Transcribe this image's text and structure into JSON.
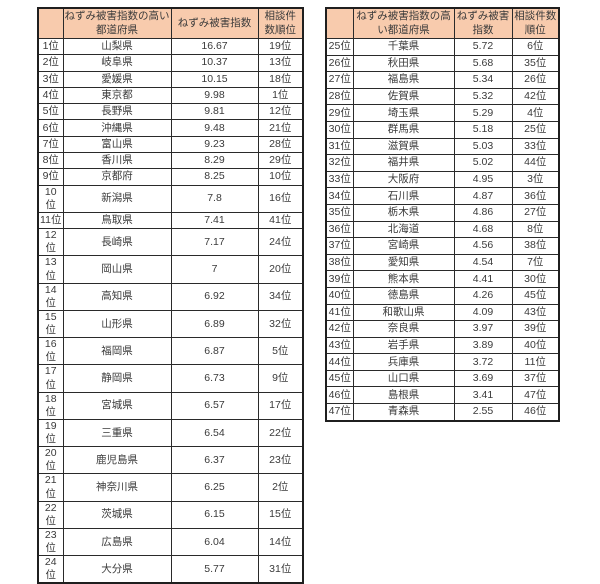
{
  "page": {
    "background": "#ffffff"
  },
  "colors": {
    "header_bg": "#f8cbad",
    "border": "#262626",
    "text": "#3a3a3a"
  },
  "chart_data": [
    {
      "type": "table",
      "headers": [
        "",
        "ねずみ被害指数の高い都道府県",
        "ねずみ被害指数",
        "相談件数順位"
      ],
      "rows": [
        [
          "1位",
          "山梨県",
          "16.67",
          "19位"
        ],
        [
          "2位",
          "岐阜県",
          "10.37",
          "13位"
        ],
        [
          "3位",
          "愛媛県",
          "10.15",
          "18位"
        ],
        [
          "4位",
          "東京都",
          "9.98",
          "1位"
        ],
        [
          "5位",
          "長野県",
          "9.81",
          "12位"
        ],
        [
          "6位",
          "沖縄県",
          "9.48",
          "21位"
        ],
        [
          "7位",
          "富山県",
          "9.23",
          "28位"
        ],
        [
          "8位",
          "香川県",
          "8.29",
          "29位"
        ],
        [
          "9位",
          "京都府",
          "8.25",
          "10位"
        ],
        [
          "10位",
          "新潟県",
          "7.8",
          "16位"
        ],
        [
          "11位",
          "鳥取県",
          "7.41",
          "41位"
        ],
        [
          "12位",
          "長崎県",
          "7.17",
          "24位"
        ],
        [
          "13位",
          "岡山県",
          "7",
          "20位"
        ],
        [
          "14位",
          "高知県",
          "6.92",
          "34位"
        ],
        [
          "15位",
          "山形県",
          "6.89",
          "32位"
        ],
        [
          "16位",
          "福岡県",
          "6.87",
          "5位"
        ],
        [
          "17位",
          "静岡県",
          "6.73",
          "9位"
        ],
        [
          "18位",
          "宮城県",
          "6.57",
          "17位"
        ],
        [
          "19位",
          "三重県",
          "6.54",
          "22位"
        ],
        [
          "20位",
          "鹿児島県",
          "6.37",
          "23位"
        ],
        [
          "21位",
          "神奈川県",
          "6.25",
          "2位"
        ],
        [
          "22位",
          "茨城県",
          "6.15",
          "15位"
        ],
        [
          "23位",
          "広島県",
          "6.04",
          "14位"
        ],
        [
          "24位",
          "大分県",
          "5.77",
          "31位"
        ]
      ]
    },
    {
      "type": "table",
      "headers": [
        "",
        "ねずみ被害指数の高い都道府県",
        "ねずみ被害指数",
        "相談件数順位"
      ],
      "rows": [
        [
          "25位",
          "千葉県",
          "5.72",
          "6位"
        ],
        [
          "26位",
          "秋田県",
          "5.68",
          "35位"
        ],
        [
          "27位",
          "福島県",
          "5.34",
          "26位"
        ],
        [
          "28位",
          "佐賀県",
          "5.32",
          "42位"
        ],
        [
          "29位",
          "埼玉県",
          "5.29",
          "4位"
        ],
        [
          "30位",
          "群馬県",
          "5.18",
          "25位"
        ],
        [
          "31位",
          "滋賀県",
          "5.03",
          "33位"
        ],
        [
          "32位",
          "福井県",
          "5.02",
          "44位"
        ],
        [
          "33位",
          "大阪府",
          "4.95",
          "3位"
        ],
        [
          "34位",
          "石川県",
          "4.87",
          "36位"
        ],
        [
          "35位",
          "栃木県",
          "4.86",
          "27位"
        ],
        [
          "36位",
          "北海道",
          "4.68",
          "8位"
        ],
        [
          "37位",
          "宮崎県",
          "4.56",
          "38位"
        ],
        [
          "38位",
          "愛知県",
          "4.54",
          "7位"
        ],
        [
          "39位",
          "熊本県",
          "4.41",
          "30位"
        ],
        [
          "40位",
          "徳島県",
          "4.26",
          "45位"
        ],
        [
          "41位",
          "和歌山県",
          "4.09",
          "43位"
        ],
        [
          "42位",
          "奈良県",
          "3.97",
          "39位"
        ],
        [
          "43位",
          "岩手県",
          "3.89",
          "40位"
        ],
        [
          "44位",
          "兵庫県",
          "3.72",
          "11位"
        ],
        [
          "45位",
          "山口県",
          "3.69",
          "37位"
        ],
        [
          "46位",
          "島根県",
          "3.41",
          "47位"
        ],
        [
          "47位",
          "青森県",
          "2.55",
          "46位"
        ]
      ]
    }
  ]
}
